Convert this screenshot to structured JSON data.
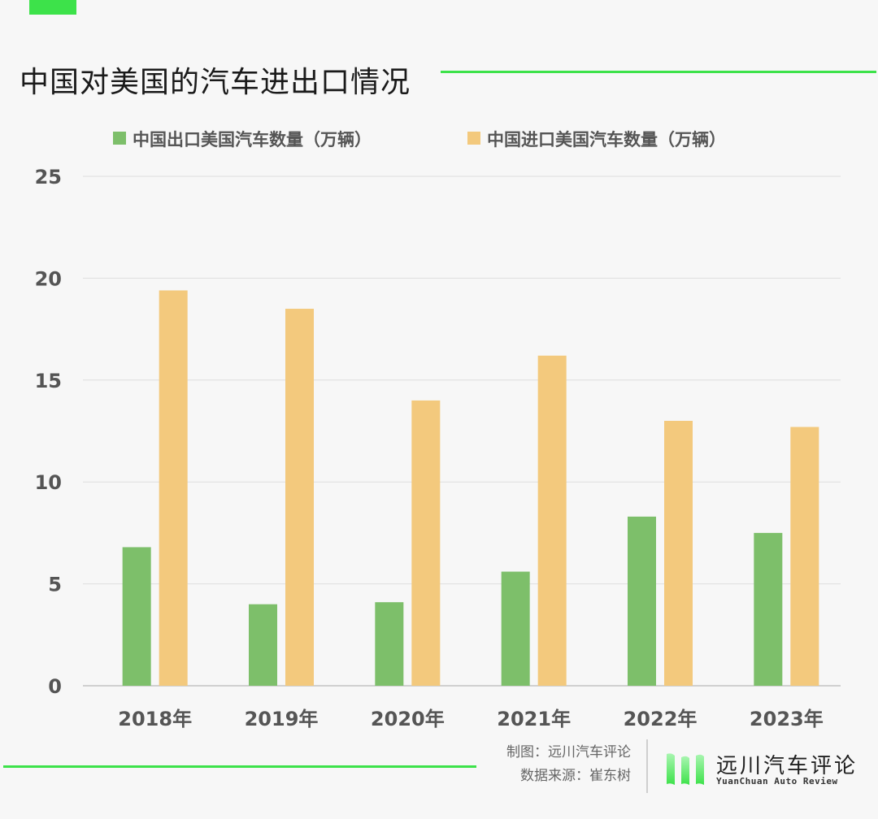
{
  "chart_data": {
    "type": "bar",
    "title": "中国对美国的汽车进出口情况",
    "categories": [
      "2018年",
      "2019年",
      "2020年",
      "2021年",
      "2022年",
      "2023年"
    ],
    "series": [
      {
        "name": "中国出口美国汽车数量（万辆）",
        "color": "#7dbf6a",
        "values": [
          6.8,
          4.0,
          4.1,
          5.6,
          8.3,
          7.5
        ]
      },
      {
        "name": "中国进口美国汽车数量（万辆）",
        "color": "#f3c97d",
        "values": [
          19.4,
          18.5,
          14.0,
          16.2,
          13.0,
          12.7
        ]
      }
    ],
    "ylim": [
      0,
      25
    ],
    "yticks": [
      0,
      5,
      10,
      15,
      20,
      25
    ],
    "grid": true,
    "legend_position": "top"
  },
  "credits": {
    "maker": "制图：远川汽车评论",
    "source": "数据来源：崔东树"
  },
  "brand": {
    "name_cn": "远川汽车评论",
    "name_en": "YuanChuan   Auto   Review"
  },
  "colors": {
    "accent": "#3de24a",
    "export_bar": "#7dbf6a",
    "import_bar": "#f3c97d"
  }
}
